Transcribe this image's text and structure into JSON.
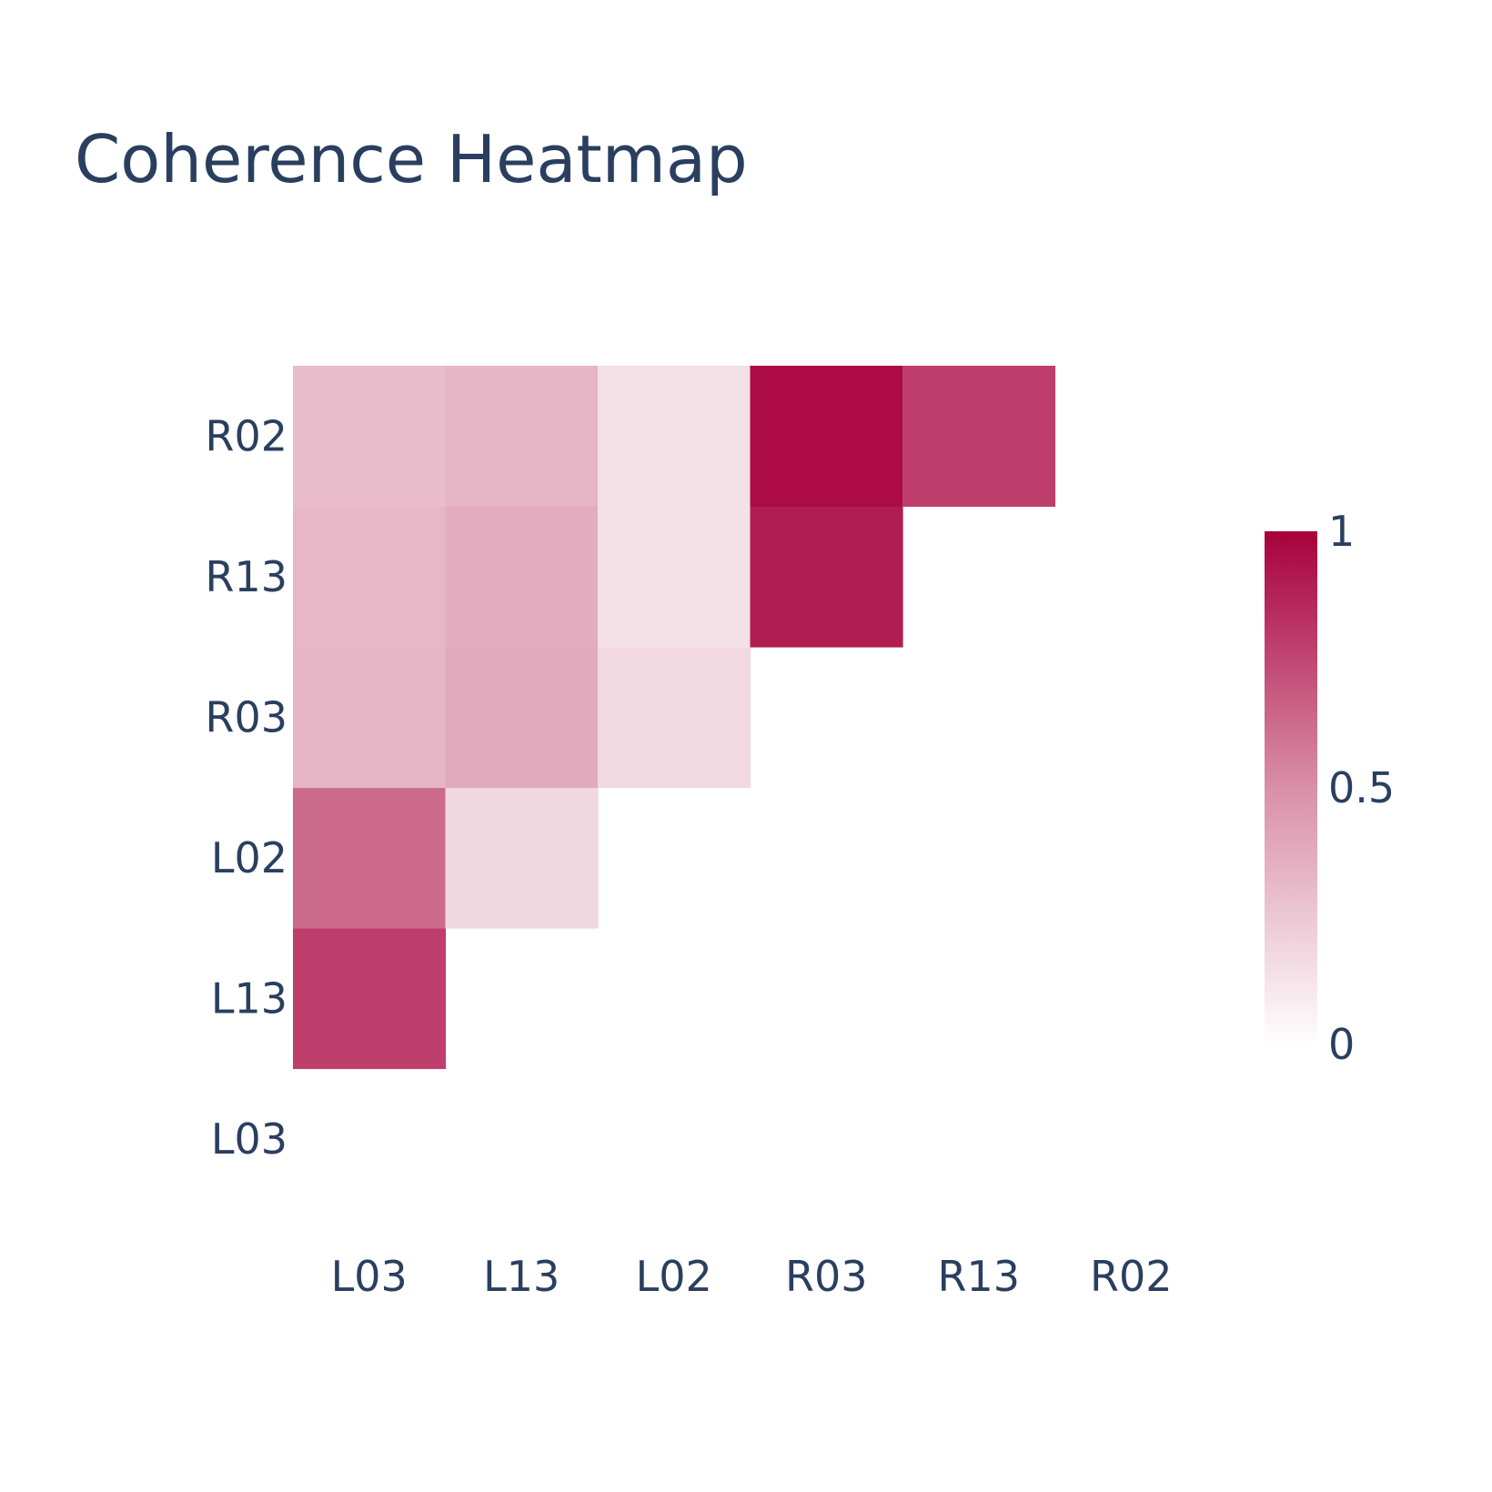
{
  "chart_data": {
    "type": "heatmap",
    "title": "Coherence Heatmap",
    "x_categories": [
      "L03",
      "L13",
      "L02",
      "R03",
      "R13",
      "R02"
    ],
    "y_categories": [
      "L03",
      "L13",
      "L02",
      "R03",
      "R13",
      "R02"
    ],
    "z": [
      [
        null,
        null,
        null,
        null,
        null,
        null
      ],
      [
        0.78,
        null,
        null,
        null,
        null,
        null
      ],
      [
        0.63,
        0.18,
        null,
        null,
        null,
        null
      ],
      [
        0.33,
        0.38,
        0.17,
        null,
        null,
        null
      ],
      [
        0.32,
        0.37,
        0.14,
        0.9,
        null,
        null
      ],
      [
        0.3,
        0.33,
        0.14,
        0.96,
        0.78,
        null
      ]
    ],
    "zmin": 0,
    "zmax": 1,
    "colorscale": [
      [
        0,
        "#ffffff"
      ],
      [
        0.5,
        "#d98fa8"
      ],
      [
        1,
        "#a8003b"
      ]
    ],
    "colorbar": {
      "tick_labels": [
        "0",
        "0.5",
        "1"
      ],
      "tick_values": [
        0,
        0.5,
        1
      ]
    },
    "grid": false
  }
}
